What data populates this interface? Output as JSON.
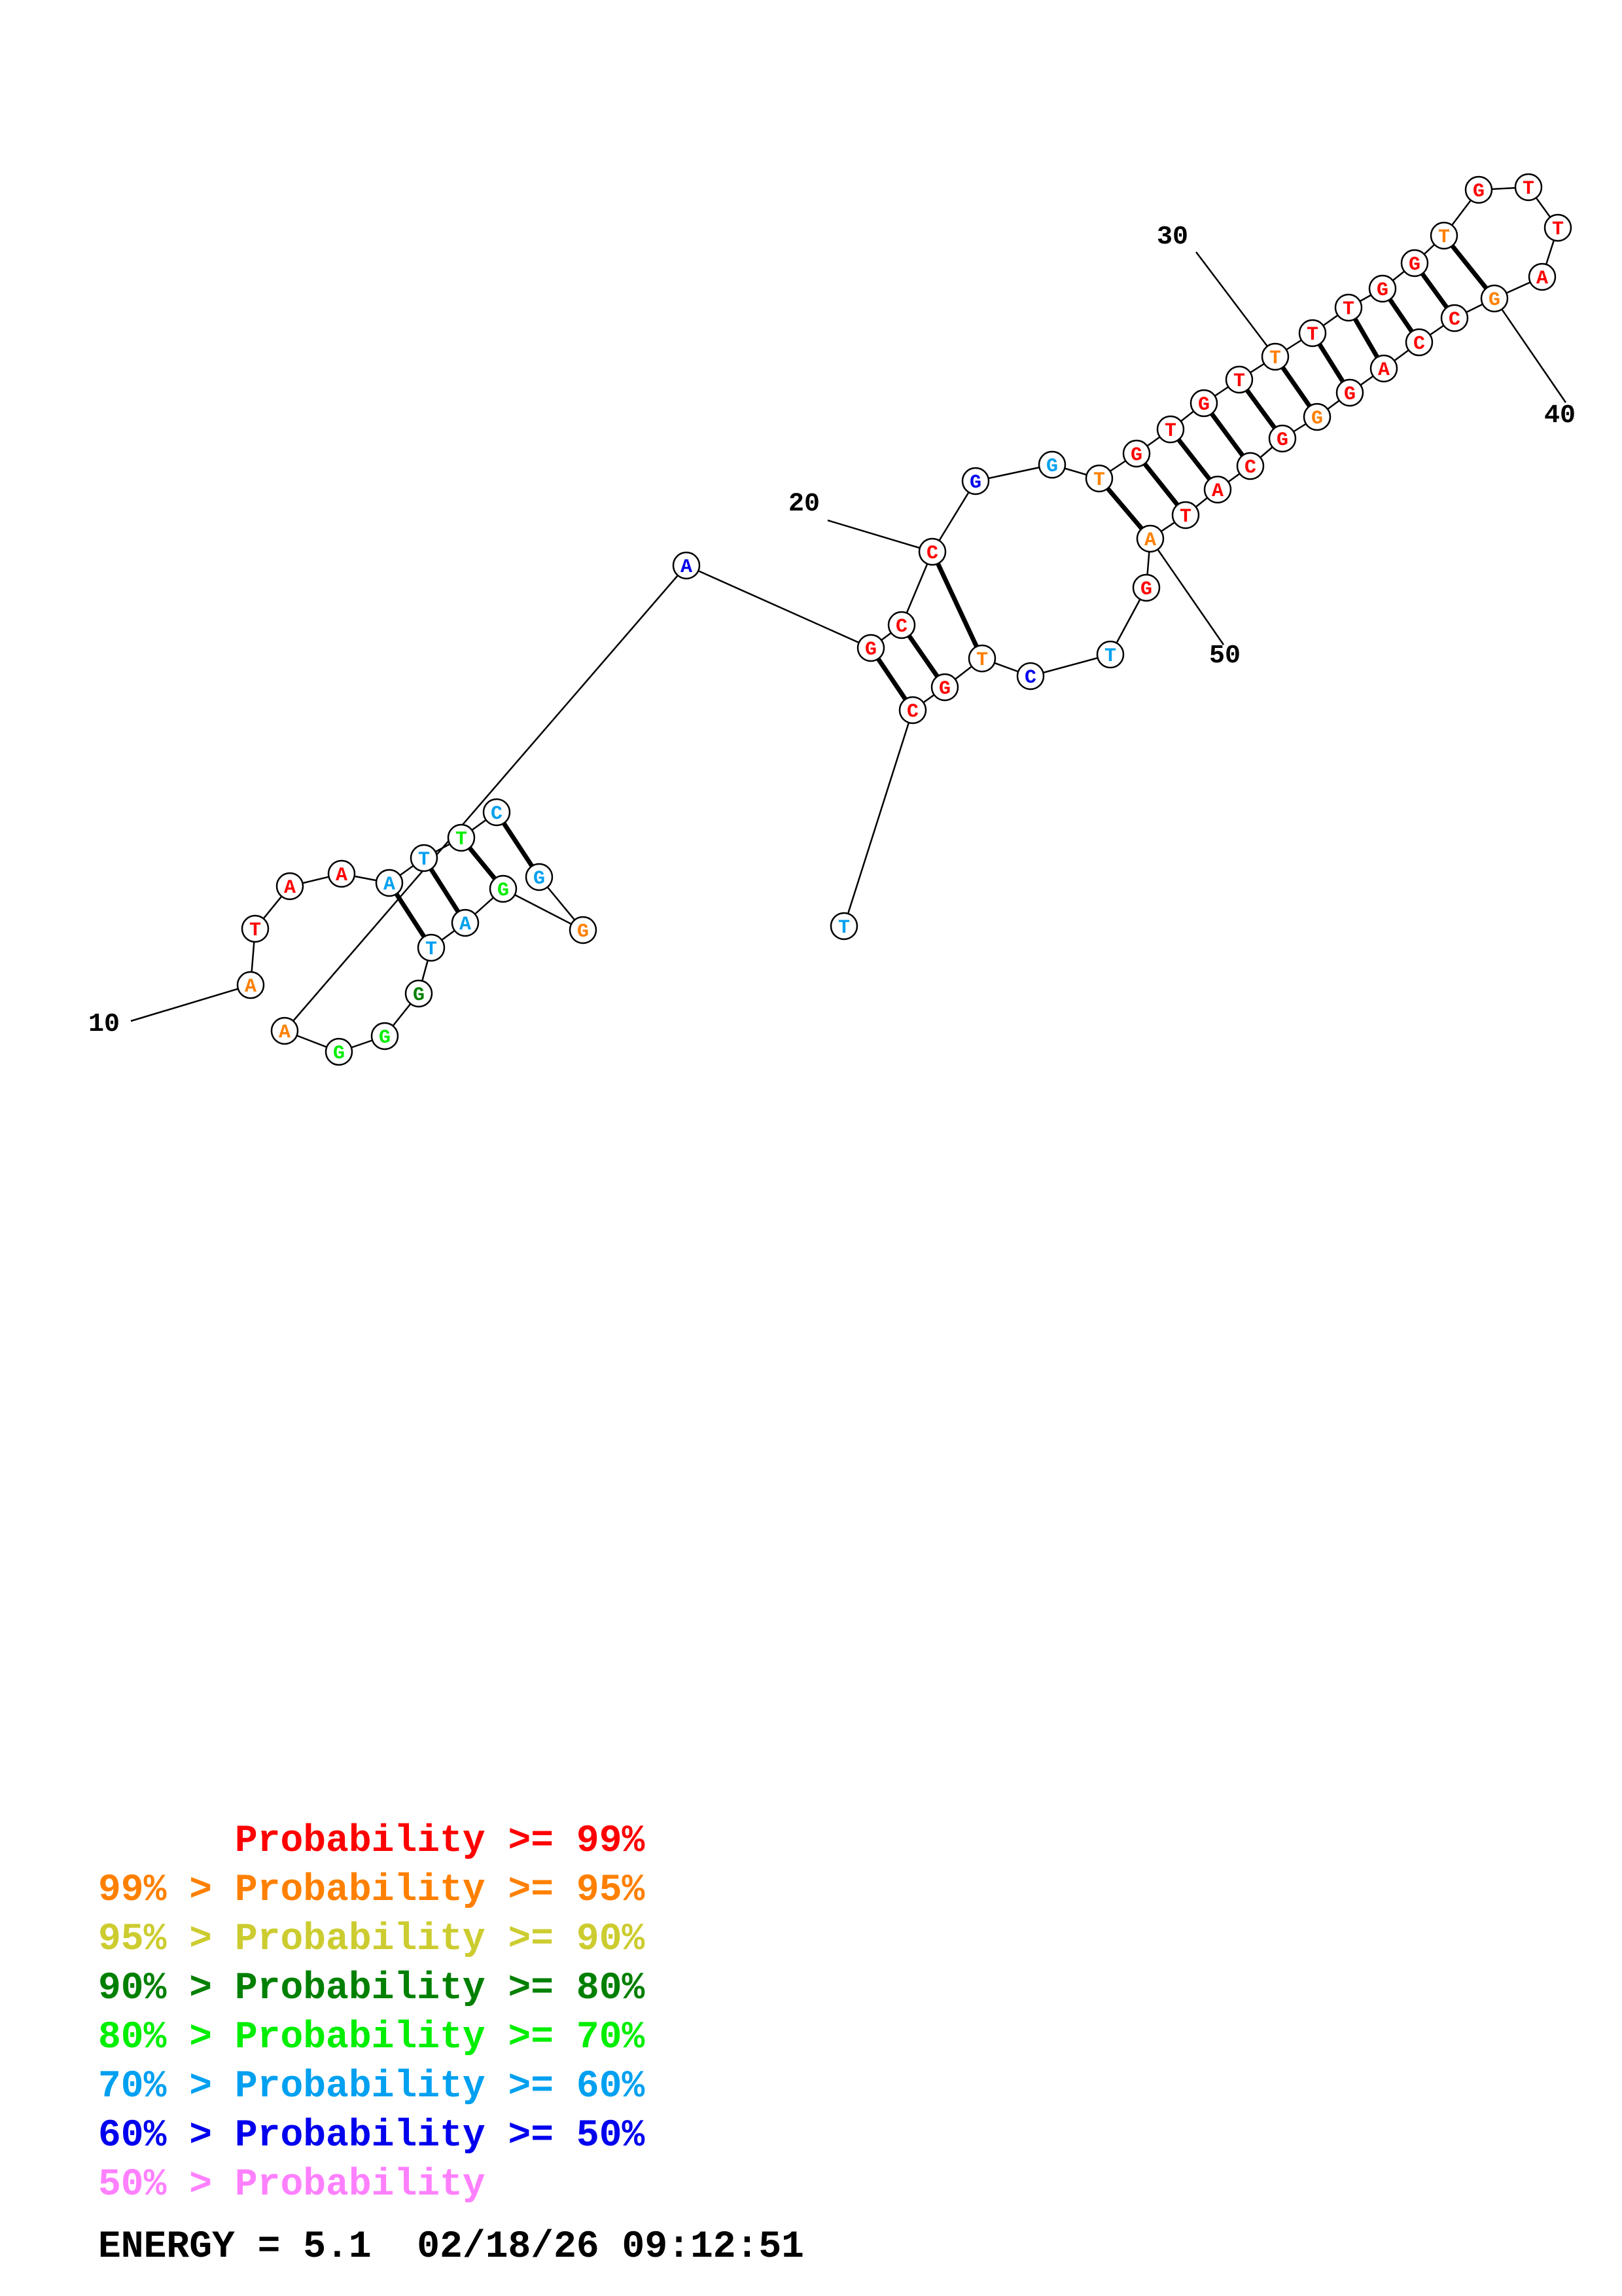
{
  "colors": {
    "p99": "#ff0000",
    "p95": "#ff8000",
    "p90": "#cccc30",
    "p80": "#008000",
    "p70": "#00ee00",
    "p60": "#00a0f0",
    "p50": "#0000ee",
    "plow": "#ff80ff",
    "black": "#000000"
  },
  "sequence": [
    {
      "base": "A",
      "color": "#ff8000"
    },
    {
      "base": "T",
      "color": "#ff0000"
    },
    {
      "base": "A",
      "color": "#ff0000"
    },
    {
      "base": "A",
      "color": "#ff0000"
    },
    {
      "base": "A",
      "color": "#00a0f0"
    },
    {
      "base": "T",
      "color": "#00a0f0"
    },
    {
      "base": "T",
      "color": "#00ee00"
    },
    {
      "base": "C",
      "color": "#00a0f0"
    },
    {
      "base": "G",
      "color": "#00a0f0"
    },
    {
      "base": "G",
      "color": "#ff8000"
    },
    {
      "base": "G",
      "color": "#00ee00"
    },
    {
      "base": "A",
      "color": "#00a0f0"
    },
    {
      "base": "T",
      "color": "#00a0f0"
    },
    {
      "base": "G",
      "color": "#008000"
    },
    {
      "base": "G",
      "color": "#00ee00"
    },
    {
      "base": "G",
      "color": "#00ee00"
    },
    {
      "base": "A",
      "color": "#ff8000"
    },
    {
      "base": "A",
      "color": "#0000ee"
    },
    {
      "base": "G",
      "color": "#ff0000"
    },
    {
      "base": "C",
      "color": "#ff0000"
    },
    {
      "base": "C",
      "color": "#ff0000"
    },
    {
      "base": "G",
      "color": "#0000ee"
    },
    {
      "base": "G",
      "color": "#00a0f0"
    },
    {
      "base": "T",
      "color": "#ff8000"
    },
    {
      "base": "G",
      "color": "#ff0000"
    },
    {
      "base": "T",
      "color": "#ff0000"
    },
    {
      "base": "G",
      "color": "#ff0000"
    },
    {
      "base": "T",
      "color": "#ff0000"
    },
    {
      "base": "T",
      "color": "#ff8000"
    },
    {
      "base": "T",
      "color": "#ff0000"
    },
    {
      "base": "T",
      "color": "#ff0000"
    },
    {
      "base": "G",
      "color": "#ff0000"
    },
    {
      "base": "G",
      "color": "#ff0000"
    },
    {
      "base": "T",
      "color": "#ff8000"
    },
    {
      "base": "G",
      "color": "#ff0000"
    },
    {
      "base": "T",
      "color": "#ff0000"
    },
    {
      "base": "T",
      "color": "#ff0000"
    },
    {
      "base": "A",
      "color": "#ff0000"
    },
    {
      "base": "G",
      "color": "#ff8000"
    },
    {
      "base": "C",
      "color": "#ff0000"
    },
    {
      "base": "C",
      "color": "#ff0000"
    },
    {
      "base": "A",
      "color": "#ff0000"
    },
    {
      "base": "G",
      "color": "#ff0000"
    },
    {
      "base": "G",
      "color": "#ff8000"
    },
    {
      "base": "G",
      "color": "#ff0000"
    },
    {
      "base": "C",
      "color": "#ff0000"
    },
    {
      "base": "A",
      "color": "#ff0000"
    },
    {
      "base": "T",
      "color": "#ff0000"
    },
    {
      "base": "A",
      "color": "#ff8000"
    },
    {
      "base": "G",
      "color": "#ff0000"
    },
    {
      "base": "T",
      "color": "#00a0f0"
    },
    {
      "base": "C",
      "color": "#0000ee"
    },
    {
      "base": "T",
      "color": "#ff8000"
    },
    {
      "base": "G",
      "color": "#ff0000"
    },
    {
      "base": "C",
      "color": "#ff0000"
    },
    {
      "base": "T",
      "color": "#00a0f0"
    }
  ],
  "position_labels": [
    "10",
    "20",
    "30",
    "40",
    "50"
  ],
  "legend": [
    {
      "text": "      Probability >= 99%",
      "color": "#ff0000"
    },
    {
      "text": "99% > Probability >= 95%",
      "color": "#ff8000"
    },
    {
      "text": "95% > Probability >= 90%",
      "color": "#cccc30"
    },
    {
      "text": "90% > Probability >= 80%",
      "color": "#008000"
    },
    {
      "text": "80% > Probability >= 70%",
      "color": "#00ee00"
    },
    {
      "text": "70% > Probability >= 60%",
      "color": "#00a0f0"
    },
    {
      "text": "60% > Probability >= 50%",
      "color": "#0000ee"
    },
    {
      "text": "50% > Probability",
      "color": "#ff80ff"
    }
  ],
  "energy_line": "ENERGY = 5.1  02/18/26 09:12:51"
}
